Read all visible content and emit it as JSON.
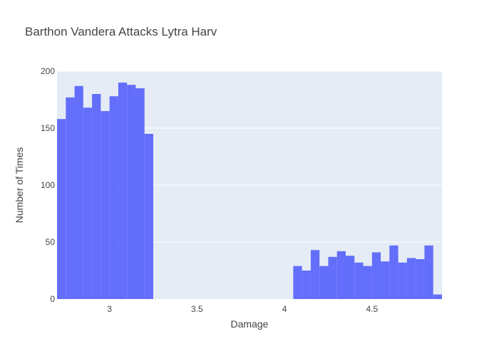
{
  "chart_data": {
    "type": "bar",
    "title": "Barthon Vandera Attacks Lytra Harv",
    "xlabel": "Damage",
    "ylabel": "Number of Times",
    "xlim": [
      2.7,
      4.9
    ],
    "ylim": [
      0,
      200
    ],
    "xticks": [
      3,
      3.5,
      4,
      4.5
    ],
    "xtick_labels": [
      "3",
      "3.5",
      "4",
      "4.5"
    ],
    "yticks": [
      0,
      50,
      100,
      150,
      200
    ],
    "ytick_labels": [
      "0",
      "50",
      "100",
      "150",
      "200"
    ],
    "bin_width": 0.05,
    "bins": [
      {
        "x0": 2.7,
        "x1": 2.75,
        "count": 158
      },
      {
        "x0": 2.75,
        "x1": 2.8,
        "count": 177
      },
      {
        "x0": 2.8,
        "x1": 2.85,
        "count": 187
      },
      {
        "x0": 2.85,
        "x1": 2.9,
        "count": 168
      },
      {
        "x0": 2.9,
        "x1": 2.95,
        "count": 180
      },
      {
        "x0": 2.95,
        "x1": 3.0,
        "count": 165
      },
      {
        "x0": 3.0,
        "x1": 3.05,
        "count": 178
      },
      {
        "x0": 3.05,
        "x1": 3.1,
        "count": 190
      },
      {
        "x0": 3.1,
        "x1": 3.15,
        "count": 188
      },
      {
        "x0": 3.15,
        "x1": 3.2,
        "count": 185
      },
      {
        "x0": 3.2,
        "x1": 3.25,
        "count": 145
      },
      {
        "x0": 4.05,
        "x1": 4.1,
        "count": 29
      },
      {
        "x0": 4.1,
        "x1": 4.15,
        "count": 25
      },
      {
        "x0": 4.15,
        "x1": 4.2,
        "count": 43
      },
      {
        "x0": 4.2,
        "x1": 4.25,
        "count": 29
      },
      {
        "x0": 4.25,
        "x1": 4.3,
        "count": 37
      },
      {
        "x0": 4.3,
        "x1": 4.35,
        "count": 42
      },
      {
        "x0": 4.35,
        "x1": 4.4,
        "count": 38
      },
      {
        "x0": 4.4,
        "x1": 4.45,
        "count": 32
      },
      {
        "x0": 4.45,
        "x1": 4.5,
        "count": 29
      },
      {
        "x0": 4.5,
        "x1": 4.55,
        "count": 41
      },
      {
        "x0": 4.55,
        "x1": 4.6,
        "count": 33
      },
      {
        "x0": 4.6,
        "x1": 4.65,
        "count": 47
      },
      {
        "x0": 4.65,
        "x1": 4.7,
        "count": 32
      },
      {
        "x0": 4.7,
        "x1": 4.75,
        "count": 36
      },
      {
        "x0": 4.75,
        "x1": 4.8,
        "count": 35
      },
      {
        "x0": 4.8,
        "x1": 4.85,
        "count": 47
      },
      {
        "x0": 4.85,
        "x1": 4.9,
        "count": 4
      }
    ],
    "grid": true,
    "bar_color": "#636efa",
    "plot_background": "#e5ecf6",
    "grid_color": "#ffffff"
  }
}
